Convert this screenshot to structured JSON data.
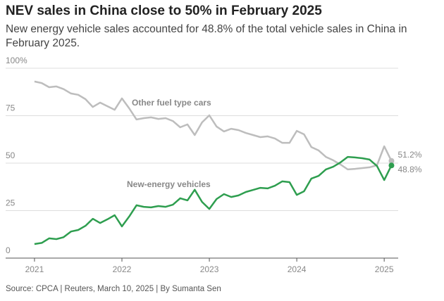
{
  "chart_data": {
    "type": "line",
    "title": "NEV sales in China close to 50% in February 2025",
    "subtitle": "New energy vehicle sales accounted for 48.8% of the total vehicle sales in China in February 2025.",
    "source": "Source: CPCA | Reuters, March 10, 2025 | By Sumanta Sen",
    "x": [
      2021.0,
      2021.083,
      2021.167,
      2021.25,
      2021.333,
      2021.417,
      2021.5,
      2021.583,
      2021.667,
      2021.75,
      2021.833,
      2021.917,
      2022.0,
      2022.083,
      2022.167,
      2022.25,
      2022.333,
      2022.417,
      2022.5,
      2022.583,
      2022.667,
      2022.75,
      2022.833,
      2022.917,
      2023.0,
      2023.083,
      2023.167,
      2023.25,
      2023.333,
      2023.417,
      2023.5,
      2023.583,
      2023.667,
      2023.75,
      2023.833,
      2023.917,
      2024.0,
      2024.083,
      2024.167,
      2024.25,
      2024.333,
      2024.417,
      2024.5,
      2024.583,
      2024.667,
      2024.75,
      2024.833,
      2024.917,
      2025.0,
      2025.083
    ],
    "xlim": [
      2020.67,
      2025.16
    ],
    "xticks": [
      2021,
      2022,
      2023,
      2024,
      2025
    ],
    "ylim": [
      0,
      100
    ],
    "yticks": [
      0,
      25,
      50,
      75,
      {
        "value": 100,
        "label": "100%"
      }
    ],
    "grid": true,
    "series": [
      {
        "name": "Other fuel type cars",
        "color": "#bdbdbd",
        "end_label": "51.2%",
        "values": [
          93,
          92.2,
          90,
          90.4,
          89,
          86.7,
          86,
          83.7,
          79.6,
          81.9,
          80,
          78.1,
          84.1,
          78.9,
          73,
          73.7,
          74.1,
          73.3,
          73.7,
          72.2,
          68.9,
          70.4,
          64.8,
          71.5,
          75.2,
          69.3,
          66.7,
          68.1,
          67.4,
          65.9,
          64.8,
          63.7,
          64.1,
          63,
          60.7,
          60.7,
          67,
          65.2,
          58.5,
          56.7,
          53.3,
          51.5,
          49.3,
          46.7,
          47,
          47.4,
          47.8,
          48.9,
          58.9,
          51.2
        ]
      },
      {
        "name": "New-energy vehicles",
        "color": "#2e9e4f",
        "end_label": "48.8%",
        "values": [
          7.4,
          8,
          10.4,
          10,
          11,
          14,
          14.8,
          17,
          20.7,
          18.5,
          20.4,
          22.6,
          16.7,
          21.9,
          27.8,
          27,
          26.7,
          27.4,
          27,
          28.1,
          31.5,
          30.4,
          36,
          29.6,
          25.9,
          31.1,
          33.7,
          32.2,
          33,
          34.8,
          35.9,
          37,
          36.7,
          38.1,
          40.4,
          40,
          33.3,
          35.2,
          41.9,
          43.3,
          46.7,
          48.1,
          50.4,
          53.3,
          53,
          52.6,
          51.9,
          48.5,
          41.1,
          48.8
        ]
      }
    ]
  }
}
